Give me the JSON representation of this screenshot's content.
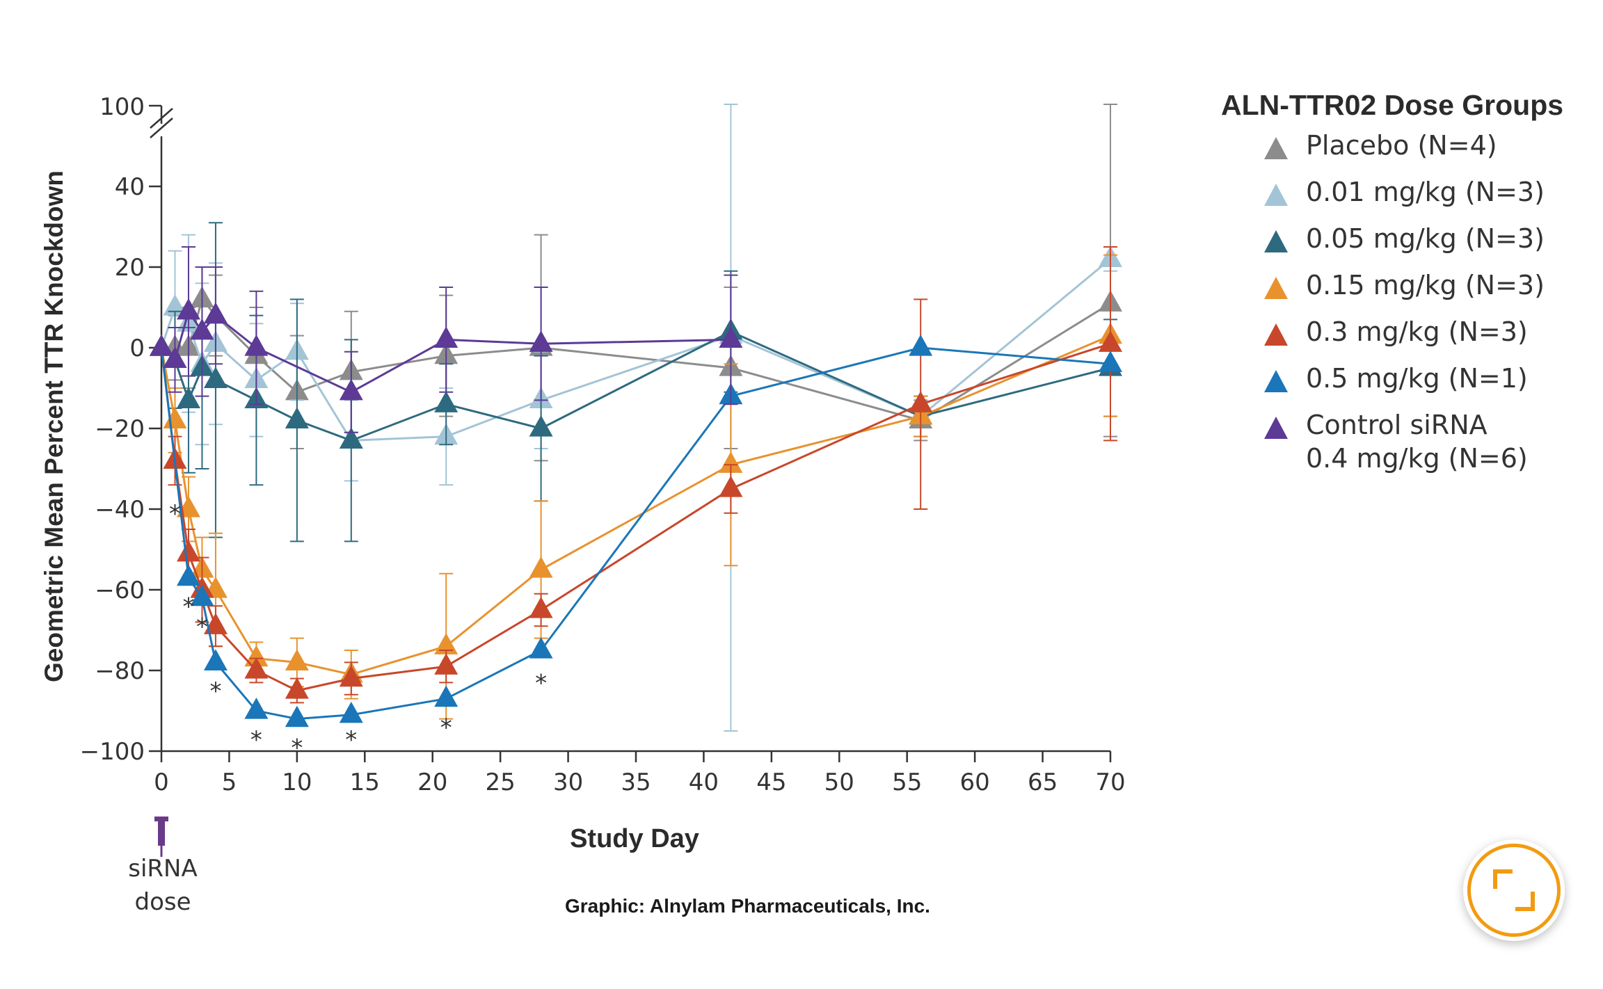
{
  "credit": "Graphic: Alnylam Pharmaceuticals, Inc.",
  "dose_marker_label": [
    "siRNA",
    "dose"
  ],
  "expand_button": {
    "icon": "expand-icon",
    "color": "#f29b12"
  },
  "chart_data": {
    "type": "line",
    "xlabel": "Study Day",
    "ylabel": "Geometric Mean Percent TTR Knockdown",
    "xlim": [
      0,
      70
    ],
    "ylim": [
      -100,
      40
    ],
    "y_break_top_label": "100",
    "x_ticks": [
      "0",
      "5",
      "10",
      "15",
      "20",
      "25",
      "30",
      "35",
      "40",
      "45",
      "50",
      "55",
      "60",
      "65",
      "70"
    ],
    "y_ticks": [
      "40",
      "20",
      "0",
      "−20",
      "−40",
      "−60",
      "−80",
      "−100"
    ],
    "grid": false,
    "marker": "triangle",
    "legend_title": "ALN-TTR02 Dose Groups",
    "legend_position": "right",
    "series": [
      {
        "name": "Placebo (N=4)",
        "color": "#8c8c8c",
        "x": [
          0,
          1,
          2,
          3,
          4,
          7,
          10,
          14,
          21,
          28,
          42,
          56,
          70
        ],
        "y": [
          0,
          0,
          0,
          12,
          8,
          -2,
          -11,
          -6,
          -2,
          0,
          -5,
          -18,
          11
        ],
        "err": [
          0,
          8,
          10,
          8,
          10,
          12,
          14,
          15,
          15,
          28,
          20,
          5,
          33
        ]
      },
      {
        "name": "0.01 mg/kg (N=3)",
        "color": "#a3c4d6",
        "x": [
          0,
          1,
          2,
          3,
          4,
          7,
          10,
          14,
          21,
          28,
          42,
          56,
          70
        ],
        "y": [
          0,
          10,
          6,
          -4,
          1,
          -8,
          -1,
          -23,
          -22,
          -13,
          3,
          -17,
          22
        ],
        "err": [
          0,
          14,
          22,
          20,
          20,
          14,
          12,
          10,
          12,
          12,
          98,
          5,
          3
        ]
      },
      {
        "name": "0.05 mg/kg (N=3)",
        "color": "#2e6a7f",
        "x": [
          0,
          1,
          2,
          3,
          4,
          7,
          10,
          14,
          21,
          28,
          42,
          56,
          70
        ],
        "y": [
          0,
          -3,
          -13,
          -5,
          -8,
          -13,
          -18,
          -23,
          -14,
          -20,
          4,
          -17,
          -5
        ],
        "err": [
          0,
          12,
          18,
          25,
          39,
          21,
          30,
          25,
          10,
          18,
          15,
          5,
          12
        ]
      },
      {
        "name": "0.15 mg/kg (N=3)",
        "color": "#e8922e",
        "x": [
          0,
          1,
          2,
          3,
          4,
          7,
          10,
          14,
          21,
          28,
          42,
          56,
          70
        ],
        "y": [
          0,
          -18,
          -40,
          -55,
          -60,
          -77,
          -78,
          -81,
          -74,
          -55,
          -29,
          -17,
          3
        ],
        "err": [
          0,
          8,
          8,
          8,
          14,
          4,
          6,
          6,
          18,
          17,
          25,
          5,
          20
        ]
      },
      {
        "name": "0.3 mg/kg (N=3)",
        "color": "#c8472a",
        "x": [
          0,
          1,
          2,
          3,
          4,
          7,
          10,
          14,
          21,
          28,
          42,
          56,
          70
        ],
        "y": [
          0,
          -28,
          -51,
          -60,
          -69,
          -80,
          -85,
          -82,
          -79,
          -65,
          -35,
          -14,
          1
        ],
        "err": [
          0,
          6,
          6,
          8,
          5,
          3,
          3,
          4,
          4,
          4,
          6,
          26,
          24
        ]
      },
      {
        "name": "0.5 mg/kg (N=1)",
        "color": "#1a76b8",
        "x": [
          0,
          2,
          3,
          4,
          7,
          10,
          14,
          21,
          28,
          42,
          56,
          70
        ],
        "y": [
          0,
          -57,
          -62,
          -78,
          -90,
          -92,
          -91,
          -87,
          -75,
          -12,
          0,
          -4
        ],
        "err": [
          0,
          0,
          0,
          0,
          0,
          0,
          0,
          0,
          0,
          0,
          0,
          0
        ]
      },
      {
        "name": "Control siRNA 0.4 mg/kg (N=6)",
        "color": "#5c3a96",
        "x": [
          0,
          1,
          2,
          3,
          4,
          7,
          14,
          21,
          28,
          42
        ],
        "y": [
          0,
          -3,
          9,
          4,
          8,
          0,
          -11,
          2,
          1,
          2
        ],
        "err": [
          0,
          8,
          16,
          16,
          12,
          14,
          10,
          13,
          14,
          16
        ]
      }
    ],
    "annotations": [
      {
        "text": "*",
        "x": 1,
        "y": -40
      },
      {
        "text": "*",
        "x": 2,
        "y": -63
      },
      {
        "text": "*",
        "x": 3,
        "y": -68
      },
      {
        "text": "*",
        "x": 4,
        "y": -84
      },
      {
        "text": "*",
        "x": 7,
        "y": -96
      },
      {
        "text": "*",
        "x": 10,
        "y": -98
      },
      {
        "text": "*",
        "x": 14,
        "y": -96
      },
      {
        "text": "*",
        "x": 21,
        "y": -93
      },
      {
        "text": "*",
        "x": 28,
        "y": -82
      }
    ]
  }
}
